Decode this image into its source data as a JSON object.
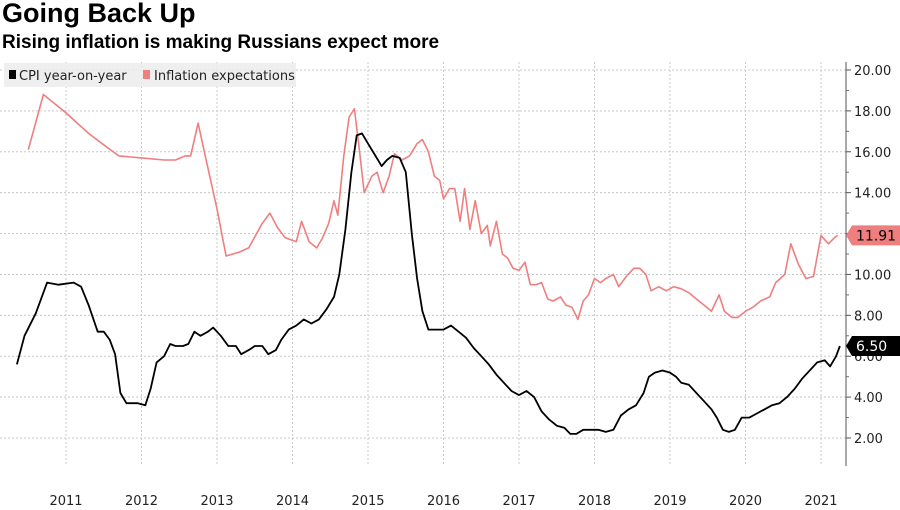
{
  "title": "Going Back Up",
  "subtitle": "Rising inflation is making Russians expect more",
  "chart_data": {
    "type": "line",
    "title": "Going Back Up",
    "subtitle": "Rising inflation is making Russians expect more",
    "xlim": [
      2010.35,
      2021.25
    ],
    "ylim": [
      0.5,
      20.5
    ],
    "x_ticks": [
      {
        "value": 2011.0,
        "label": "2011"
      },
      {
        "value": 2012.0,
        "label": "2012"
      },
      {
        "value": 2013.0,
        "label": "2013"
      },
      {
        "value": 2014.0,
        "label": "2014"
      },
      {
        "value": 2015.0,
        "label": "2015"
      },
      {
        "value": 2016.0,
        "label": "2016"
      },
      {
        "value": 2017.0,
        "label": "2017"
      },
      {
        "value": 2018.0,
        "label": "2018"
      },
      {
        "value": 2019.0,
        "label": "2019"
      },
      {
        "value": 2020.0,
        "label": "2020"
      },
      {
        "value": 2021.0,
        "label": "2021"
      }
    ],
    "y_ticks": [
      {
        "value": 2,
        "label": "2.00"
      },
      {
        "value": 4,
        "label": "4.00"
      },
      {
        "value": 6,
        "label": "6.00"
      },
      {
        "value": 8,
        "label": "8.00"
      },
      {
        "value": 10,
        "label": "10.00"
      },
      {
        "value": 12,
        "label": "12.00"
      },
      {
        "value": 14,
        "label": "14.00"
      },
      {
        "value": 16,
        "label": "16.00"
      },
      {
        "value": 18,
        "label": "18.00"
      },
      {
        "value": 20,
        "label": "20.00"
      }
    ],
    "grid": true,
    "y_axis_side": "right",
    "legend_position": "top-left",
    "series": [
      {
        "name": "CPI year-on-year",
        "color": "#000000",
        "last_label": "6.50",
        "points": [
          [
            2010.35,
            5.6
          ],
          [
            2010.45,
            7.0
          ],
          [
            2010.6,
            8.1
          ],
          [
            2010.75,
            9.6
          ],
          [
            2010.9,
            9.5
          ],
          [
            2011.1,
            9.6
          ],
          [
            2011.2,
            9.4
          ],
          [
            2011.3,
            8.5
          ],
          [
            2011.42,
            7.2
          ],
          [
            2011.5,
            7.2
          ],
          [
            2011.58,
            6.8
          ],
          [
            2011.65,
            6.1
          ],
          [
            2011.72,
            4.2
          ],
          [
            2011.8,
            3.7
          ],
          [
            2011.95,
            3.7
          ],
          [
            2012.05,
            3.6
          ],
          [
            2012.12,
            4.4
          ],
          [
            2012.2,
            5.7
          ],
          [
            2012.3,
            6.0
          ],
          [
            2012.38,
            6.6
          ],
          [
            2012.45,
            6.5
          ],
          [
            2012.55,
            6.5
          ],
          [
            2012.62,
            6.6
          ],
          [
            2012.7,
            7.2
          ],
          [
            2012.78,
            7.0
          ],
          [
            2012.88,
            7.2
          ],
          [
            2012.95,
            7.4
          ],
          [
            2013.05,
            7.0
          ],
          [
            2013.15,
            6.5
          ],
          [
            2013.25,
            6.5
          ],
          [
            2013.32,
            6.1
          ],
          [
            2013.42,
            6.3
          ],
          [
            2013.5,
            6.5
          ],
          [
            2013.6,
            6.5
          ],
          [
            2013.68,
            6.1
          ],
          [
            2013.78,
            6.3
          ],
          [
            2013.85,
            6.8
          ],
          [
            2013.95,
            7.3
          ],
          [
            2014.05,
            7.5
          ],
          [
            2014.15,
            7.8
          ],
          [
            2014.25,
            7.6
          ],
          [
            2014.35,
            7.8
          ],
          [
            2014.45,
            8.3
          ],
          [
            2014.55,
            8.9
          ],
          [
            2014.62,
            10.0
          ],
          [
            2014.7,
            12.2
          ],
          [
            2014.78,
            15.0
          ],
          [
            2014.85,
            16.8
          ],
          [
            2014.92,
            16.9
          ],
          [
            2015.0,
            16.4
          ],
          [
            2015.1,
            15.8
          ],
          [
            2015.18,
            15.3
          ],
          [
            2015.25,
            15.6
          ],
          [
            2015.32,
            15.8
          ],
          [
            2015.42,
            15.7
          ],
          [
            2015.5,
            15.0
          ],
          [
            2015.58,
            12.0
          ],
          [
            2015.65,
            9.8
          ],
          [
            2015.72,
            8.2
          ],
          [
            2015.8,
            7.3
          ],
          [
            2015.88,
            7.3
          ],
          [
            2016.0,
            7.3
          ],
          [
            2016.1,
            7.5
          ],
          [
            2016.2,
            7.2
          ],
          [
            2016.3,
            6.9
          ],
          [
            2016.4,
            6.4
          ],
          [
            2016.5,
            6.0
          ],
          [
            2016.6,
            5.6
          ],
          [
            2016.7,
            5.1
          ],
          [
            2016.8,
            4.7
          ],
          [
            2016.9,
            4.3
          ],
          [
            2017.0,
            4.1
          ],
          [
            2017.1,
            4.3
          ],
          [
            2017.2,
            4.0
          ],
          [
            2017.3,
            3.3
          ],
          [
            2017.4,
            2.9
          ],
          [
            2017.5,
            2.6
          ],
          [
            2017.6,
            2.5
          ],
          [
            2017.68,
            2.2
          ],
          [
            2017.76,
            2.2
          ],
          [
            2017.85,
            2.4
          ],
          [
            2017.95,
            2.4
          ],
          [
            2018.05,
            2.4
          ],
          [
            2018.15,
            2.3
          ],
          [
            2018.25,
            2.4
          ],
          [
            2018.35,
            3.1
          ],
          [
            2018.45,
            3.4
          ],
          [
            2018.55,
            3.6
          ],
          [
            2018.65,
            4.2
          ],
          [
            2018.72,
            5.0
          ],
          [
            2018.8,
            5.2
          ],
          [
            2018.9,
            5.3
          ],
          [
            2019.0,
            5.2
          ],
          [
            2019.08,
            5.0
          ],
          [
            2019.15,
            4.7
          ],
          [
            2019.25,
            4.6
          ],
          [
            2019.35,
            4.2
          ],
          [
            2019.45,
            3.8
          ],
          [
            2019.55,
            3.4
          ],
          [
            2019.62,
            3.0
          ],
          [
            2019.7,
            2.4
          ],
          [
            2019.78,
            2.3
          ],
          [
            2019.86,
            2.4
          ],
          [
            2019.95,
            3.0
          ],
          [
            2020.05,
            3.0
          ],
          [
            2020.15,
            3.2
          ],
          [
            2020.25,
            3.4
          ],
          [
            2020.35,
            3.6
          ],
          [
            2020.45,
            3.7
          ],
          [
            2020.55,
            4.0
          ],
          [
            2020.65,
            4.4
          ],
          [
            2020.75,
            4.9
          ],
          [
            2020.85,
            5.3
          ],
          [
            2020.95,
            5.7
          ],
          [
            2021.05,
            5.8
          ],
          [
            2021.12,
            5.5
          ],
          [
            2021.2,
            6.0
          ],
          [
            2021.25,
            6.5
          ]
        ]
      },
      {
        "name": "Inflation expectations",
        "color": "#ef7f7f",
        "last_label": "11.91",
        "points": [
          [
            2010.5,
            16.1
          ],
          [
            2010.7,
            18.8
          ],
          [
            2011.0,
            17.9
          ],
          [
            2011.3,
            16.9
          ],
          [
            2011.55,
            16.2
          ],
          [
            2011.7,
            15.8
          ],
          [
            2012.0,
            15.7
          ],
          [
            2012.3,
            15.6
          ],
          [
            2012.45,
            15.6
          ],
          [
            2012.58,
            15.8
          ],
          [
            2012.65,
            15.8
          ],
          [
            2012.75,
            17.4
          ],
          [
            2012.85,
            15.7
          ],
          [
            2013.0,
            13.2
          ],
          [
            2013.12,
            10.9
          ],
          [
            2013.3,
            11.1
          ],
          [
            2013.42,
            11.3
          ],
          [
            2013.6,
            12.5
          ],
          [
            2013.7,
            13.0
          ],
          [
            2013.8,
            12.3
          ],
          [
            2013.9,
            11.8
          ],
          [
            2014.05,
            11.6
          ],
          [
            2014.12,
            12.6
          ],
          [
            2014.22,
            11.6
          ],
          [
            2014.32,
            11.3
          ],
          [
            2014.4,
            11.8
          ],
          [
            2014.48,
            12.5
          ],
          [
            2014.55,
            13.6
          ],
          [
            2014.6,
            12.9
          ],
          [
            2014.68,
            15.8
          ],
          [
            2014.75,
            17.7
          ],
          [
            2014.82,
            18.1
          ],
          [
            2014.88,
            16.3
          ],
          [
            2014.95,
            14.0
          ],
          [
            2015.05,
            14.8
          ],
          [
            2015.12,
            15.0
          ],
          [
            2015.2,
            14.0
          ],
          [
            2015.28,
            14.8
          ],
          [
            2015.35,
            15.9
          ],
          [
            2015.45,
            15.6
          ],
          [
            2015.55,
            15.8
          ],
          [
            2015.65,
            16.4
          ],
          [
            2015.72,
            16.6
          ],
          [
            2015.8,
            16.0
          ],
          [
            2015.88,
            14.8
          ],
          [
            2015.95,
            14.6
          ],
          [
            2016.0,
            13.7
          ],
          [
            2016.08,
            14.2
          ],
          [
            2016.15,
            14.2
          ],
          [
            2016.22,
            12.6
          ],
          [
            2016.28,
            14.2
          ],
          [
            2016.35,
            12.2
          ],
          [
            2016.42,
            13.6
          ],
          [
            2016.5,
            12.0
          ],
          [
            2016.58,
            12.4
          ],
          [
            2016.62,
            11.4
          ],
          [
            2016.7,
            12.6
          ],
          [
            2016.78,
            11.0
          ],
          [
            2016.85,
            10.8
          ],
          [
            2016.92,
            10.3
          ],
          [
            2017.0,
            10.2
          ],
          [
            2017.08,
            10.6
          ],
          [
            2017.15,
            9.5
          ],
          [
            2017.22,
            9.5
          ],
          [
            2017.3,
            9.6
          ],
          [
            2017.38,
            8.8
          ],
          [
            2017.45,
            8.7
          ],
          [
            2017.55,
            8.9
          ],
          [
            2017.62,
            8.5
          ],
          [
            2017.7,
            8.4
          ],
          [
            2017.78,
            7.8
          ],
          [
            2017.85,
            8.7
          ],
          [
            2017.92,
            9.0
          ],
          [
            2018.0,
            9.8
          ],
          [
            2018.08,
            9.6
          ],
          [
            2018.15,
            9.8
          ],
          [
            2018.25,
            10.0
          ],
          [
            2018.32,
            9.4
          ],
          [
            2018.42,
            9.9
          ],
          [
            2018.52,
            10.3
          ],
          [
            2018.6,
            10.3
          ],
          [
            2018.68,
            10.0
          ],
          [
            2018.75,
            9.2
          ],
          [
            2018.85,
            9.4
          ],
          [
            2018.95,
            9.2
          ],
          [
            2019.05,
            9.4
          ],
          [
            2019.15,
            9.3
          ],
          [
            2019.25,
            9.1
          ],
          [
            2019.35,
            8.8
          ],
          [
            2019.45,
            8.5
          ],
          [
            2019.55,
            8.2
          ],
          [
            2019.65,
            9.0
          ],
          [
            2019.72,
            8.2
          ],
          [
            2019.82,
            7.9
          ],
          [
            2019.9,
            7.9
          ],
          [
            2020.0,
            8.2
          ],
          [
            2020.1,
            8.4
          ],
          [
            2020.2,
            8.7
          ],
          [
            2020.32,
            8.9
          ],
          [
            2020.4,
            9.6
          ],
          [
            2020.52,
            10.0
          ],
          [
            2020.6,
            11.5
          ],
          [
            2020.7,
            10.5
          ],
          [
            2020.8,
            9.8
          ],
          [
            2020.9,
            9.9
          ],
          [
            2021.0,
            11.9
          ],
          [
            2021.1,
            11.5
          ],
          [
            2021.18,
            11.8
          ],
          [
            2021.22,
            11.91
          ]
        ]
      }
    ]
  }
}
